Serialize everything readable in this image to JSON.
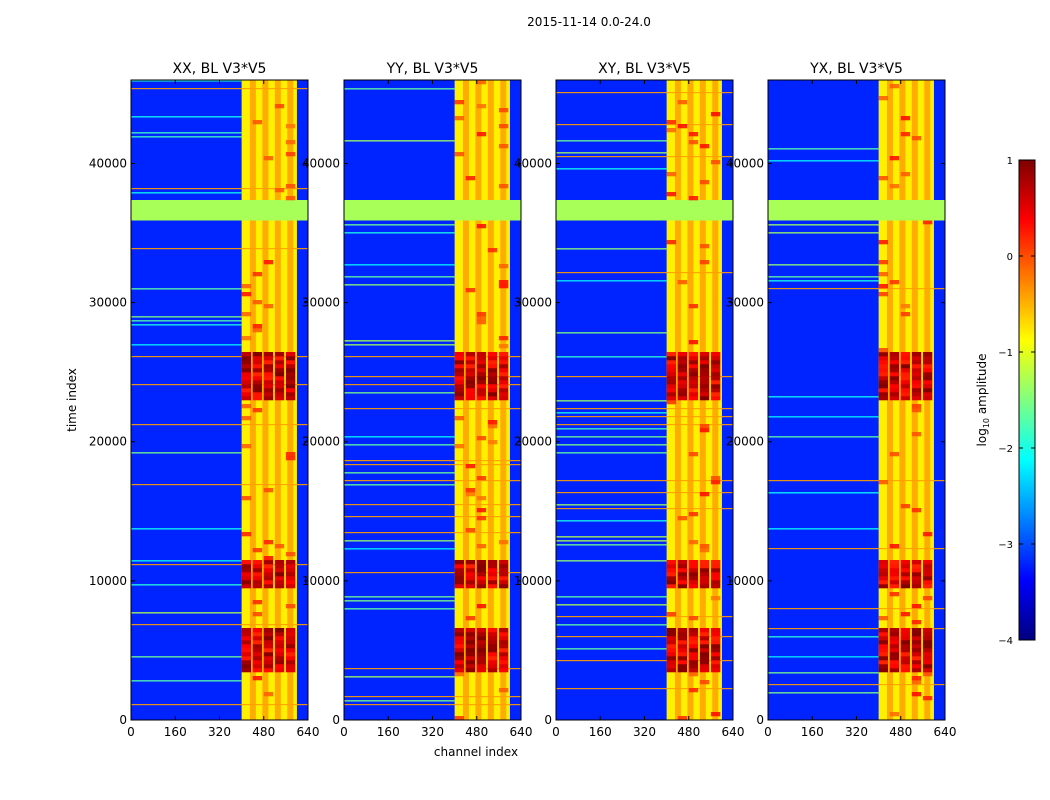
{
  "chart_data": {
    "type": "heatmap",
    "suptitle": "2015-11-14 0.0-24.0",
    "xlabel": "channel index",
    "ylabel": "time index",
    "xlim": [
      0,
      640
    ],
    "ylim": [
      0,
      46000
    ],
    "xticks": [
      0,
      160,
      320,
      480,
      640
    ],
    "yticks": [
      0,
      10000,
      20000,
      30000,
      40000
    ],
    "colormap": "jet",
    "colorbar": {
      "label": "log10 amplitude",
      "label_main": "log",
      "label_sub": "10",
      "label_rest": " amplitude",
      "range": [
        -4,
        1
      ],
      "ticks": [
        1,
        0,
        -1,
        -2,
        -3,
        -4
      ],
      "tick_labels": [
        "1",
        "0",
        "−1",
        "−2",
        "−3",
        "−4"
      ],
      "placement": "right"
    },
    "panels": [
      {
        "title": "XX, BL V3*V5",
        "pol": "XX"
      },
      {
        "title": "YY, BL V3*V5",
        "pol": "YY"
      },
      {
        "title": "XY, BL V3*V5",
        "pol": "XY"
      },
      {
        "title": "YX, BL V3*V5",
        "pol": "YX"
      }
    ],
    "features": {
      "background_log10_amp": -3.2,
      "high_band_channels": [
        400,
        600
      ],
      "high_band_log10_amp": -0.8,
      "bright_time_ranges": [
        [
          9500,
          11500
        ],
        [
          3500,
          6500
        ],
        [
          23000,
          26500
        ]
      ],
      "flagged_time_range": [
        36000,
        37500
      ],
      "flagged_log10_amp": -1.3
    }
  }
}
